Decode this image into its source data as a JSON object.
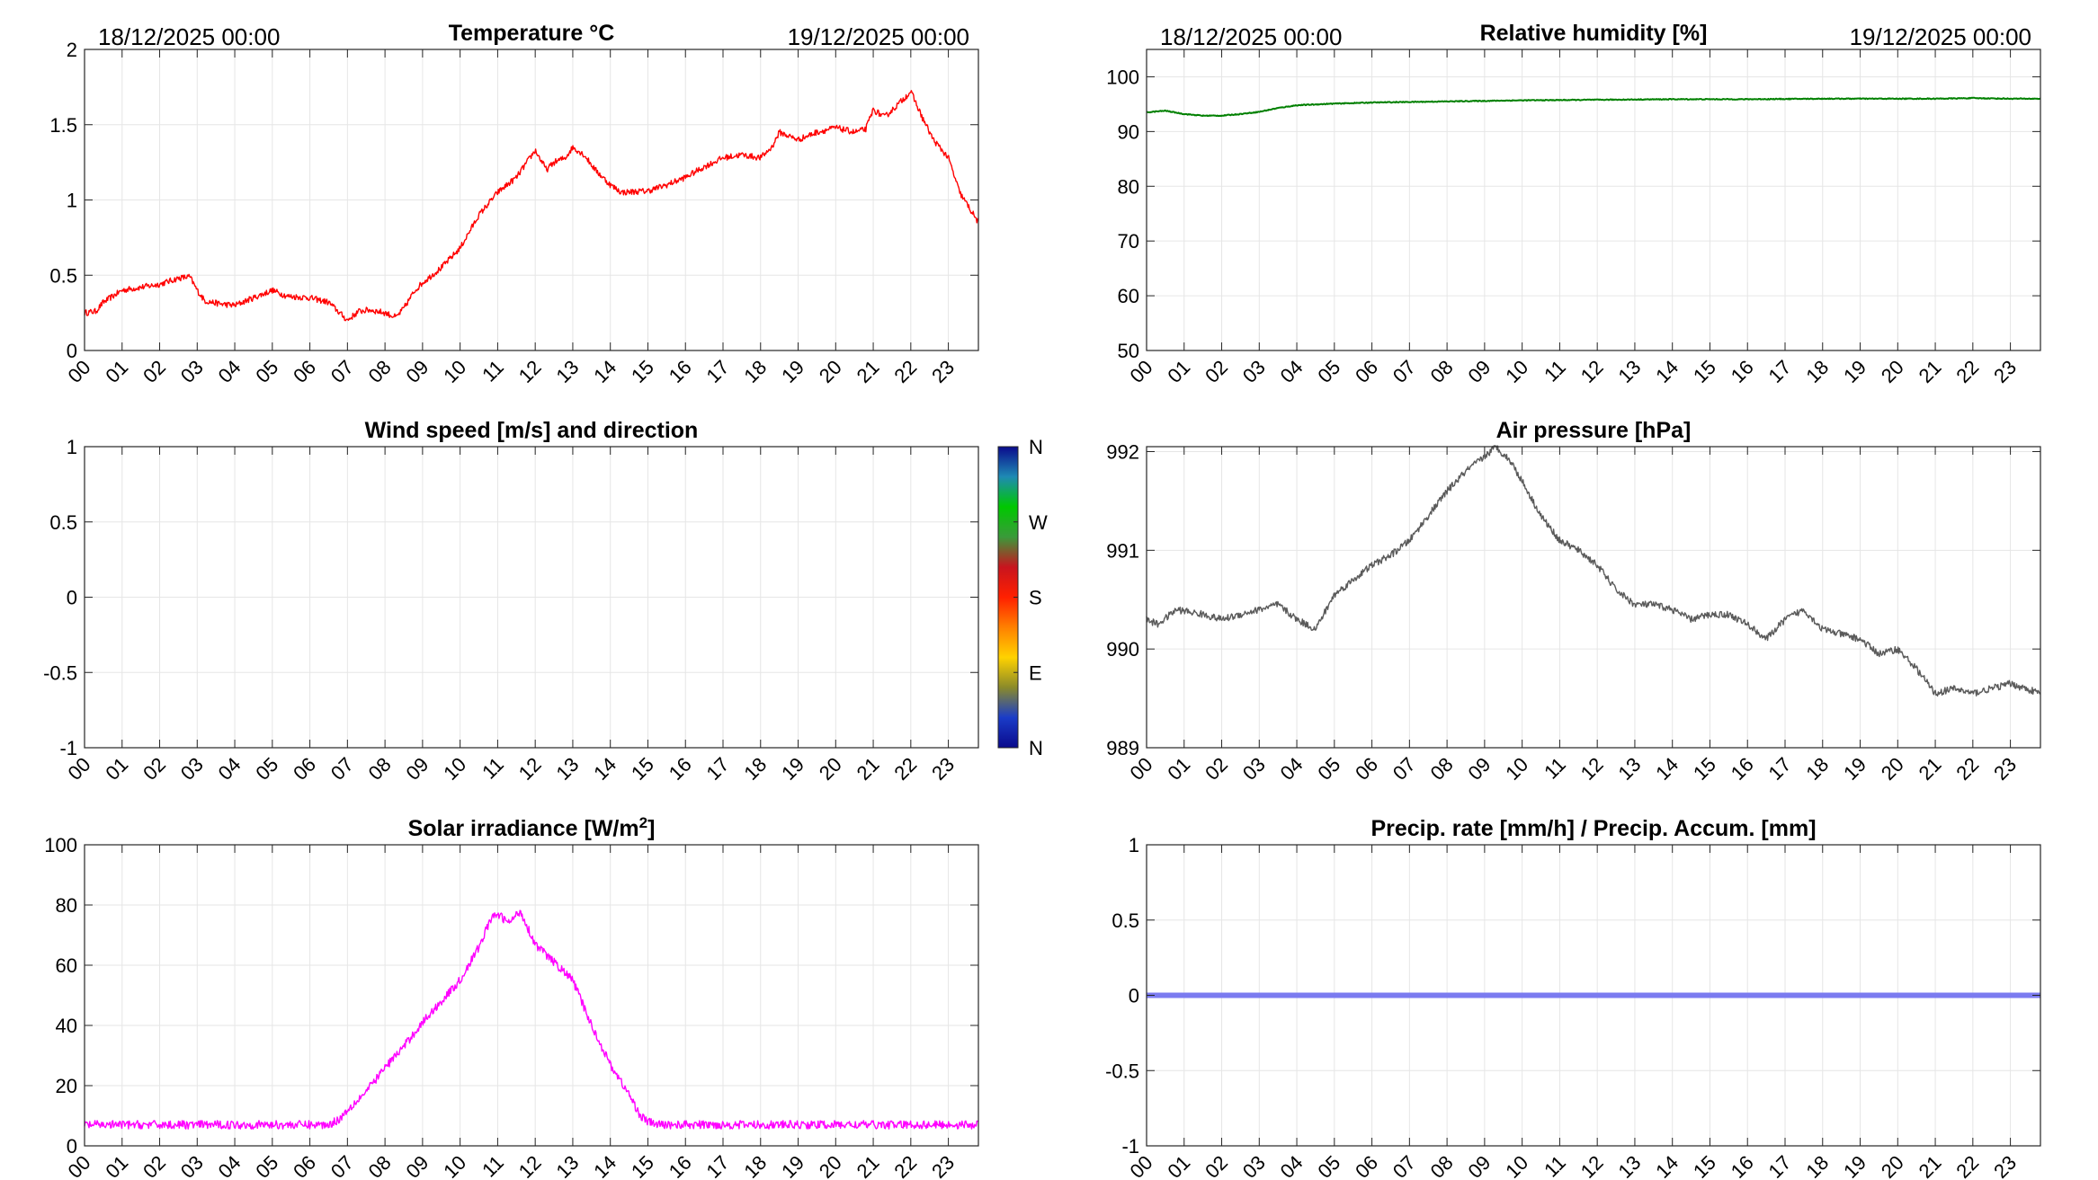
{
  "hour_ticks": [
    "00",
    "01",
    "02",
    "03",
    "04",
    "05",
    "06",
    "07",
    "08",
    "09",
    "10",
    "11",
    "12",
    "13",
    "14",
    "15",
    "16",
    "17",
    "18",
    "19",
    "20",
    "21",
    "22",
    "23"
  ],
  "chart_data": [
    {
      "id": "temperature",
      "type": "line",
      "title": "Temperature °C",
      "date_left": "18/12/2025 00:00",
      "date_right": "19/12/2025 00:00",
      "xlim": [
        0,
        23.8
      ],
      "ylim": [
        0,
        2
      ],
      "yticks": [
        0,
        0.5,
        1,
        1.5,
        2
      ],
      "ytick_labels": [
        "0",
        "0.5",
        "1",
        "1.5",
        "2"
      ],
      "color": "#ff0000",
      "noise": 0.02,
      "x": [
        0,
        0.3,
        0.5,
        1,
        1.5,
        2,
        2.5,
        2.8,
        3,
        3.2,
        3.6,
        4,
        4.5,
        5,
        5.4,
        6,
        6.5,
        7,
        7.3,
        7.6,
        8,
        8.3,
        8.5,
        8.8,
        9,
        9.5,
        10,
        10.5,
        11,
        11.5,
        12,
        12.3,
        12.5,
        12.8,
        13,
        13.3,
        13.6,
        14,
        14.3,
        15,
        15.5,
        16,
        16.5,
        17,
        17.5,
        18,
        18.3,
        18.5,
        18.8,
        19,
        19.5,
        20,
        20.5,
        20.8,
        21,
        21.3,
        21.6,
        22,
        22.3,
        22.6,
        23,
        23.3,
        23.8
      ],
      "y": [
        0.25,
        0.26,
        0.32,
        0.4,
        0.42,
        0.44,
        0.48,
        0.49,
        0.4,
        0.33,
        0.31,
        0.3,
        0.35,
        0.4,
        0.36,
        0.35,
        0.32,
        0.2,
        0.26,
        0.27,
        0.25,
        0.22,
        0.28,
        0.4,
        0.45,
        0.55,
        0.68,
        0.9,
        1.05,
        1.15,
        1.33,
        1.2,
        1.25,
        1.28,
        1.35,
        1.3,
        1.2,
        1.1,
        1.05,
        1.06,
        1.1,
        1.15,
        1.22,
        1.28,
        1.3,
        1.28,
        1.35,
        1.45,
        1.42,
        1.4,
        1.45,
        1.48,
        1.45,
        1.47,
        1.6,
        1.55,
        1.62,
        1.72,
        1.55,
        1.4,
        1.28,
        1.05,
        0.85
      ]
    },
    {
      "id": "humidity",
      "type": "line",
      "title": "Relative humidity [%]",
      "date_left": "18/12/2025 00:00",
      "date_right": "19/12/2025 00:00",
      "xlim": [
        0,
        23.8
      ],
      "ylim": [
        50,
        105
      ],
      "yticks": [
        50,
        60,
        70,
        80,
        90,
        100
      ],
      "ytick_labels": [
        "50",
        "60",
        "70",
        "80",
        "90",
        "100"
      ],
      "color": "#008000",
      "noise": 0.08,
      "x": [
        0,
        0.5,
        1,
        1.5,
        2,
        2.5,
        3,
        3.5,
        4,
        5,
        6,
        7,
        8,
        10,
        12,
        14,
        16,
        18,
        20,
        21,
        22,
        23,
        23.8
      ],
      "y": [
        93.5,
        93.8,
        93.2,
        92.9,
        92.9,
        93.2,
        93.6,
        94.3,
        94.8,
        95.1,
        95.3,
        95.4,
        95.5,
        95.7,
        95.8,
        95.9,
        95.9,
        96.0,
        96.0,
        96.0,
        96.1,
        96.0,
        96.0
      ]
    },
    {
      "id": "wind",
      "type": "scatter",
      "title": "Wind speed [m/s] and direction",
      "xlim": [
        0,
        23.8
      ],
      "ylim": [
        -1,
        1
      ],
      "yticks": [
        -1,
        -0.5,
        0,
        0.5,
        1
      ],
      "ytick_labels": [
        "-1",
        "-0.5",
        "0",
        "0.5",
        "1"
      ],
      "x": [],
      "y": [],
      "colorbar": {
        "labels": [
          "N",
          "E",
          "S",
          "W",
          "N"
        ],
        "colors": [
          "#0a0a8c",
          "#1a3cc8",
          "#8a8a2a",
          "#ffd200",
          "#ff8000",
          "#ff2000",
          "#c8141e",
          "#3a9a3a",
          "#00c800",
          "#1e8ab4",
          "#0a0a8c"
        ]
      }
    },
    {
      "id": "pressure",
      "type": "line",
      "title": "Air pressure [hPa]",
      "xlim": [
        0,
        23.8
      ],
      "ylim": [
        989,
        992.05
      ],
      "yticks": [
        989,
        990,
        991,
        992
      ],
      "ytick_labels": [
        "989",
        "990",
        "991",
        "992"
      ],
      "color": "#5a5a5a",
      "noise": 0.035,
      "x": [
        0,
        0.3,
        0.8,
        1.5,
        2,
        2.5,
        3,
        3.5,
        4,
        4.5,
        5,
        5.5,
        6,
        6.5,
        7,
        7.5,
        8,
        8.5,
        9,
        9.3,
        9.7,
        10,
        10.5,
        11,
        11.5,
        12,
        12.5,
        13,
        13.5,
        14,
        14.5,
        15,
        15.5,
        16,
        16.5,
        17,
        17.5,
        18,
        18.5,
        19,
        19.5,
        20,
        20.5,
        21,
        21.5,
        22,
        22.5,
        23,
        23.8
      ],
      "y": [
        990.3,
        990.25,
        990.4,
        990.35,
        990.3,
        990.35,
        990.4,
        990.45,
        990.3,
        990.2,
        990.55,
        990.7,
        990.85,
        990.95,
        991.1,
        991.35,
        991.6,
        991.8,
        991.95,
        992.05,
        991.9,
        991.7,
        991.35,
        991.1,
        991.0,
        990.85,
        990.6,
        990.45,
        990.45,
        990.4,
        990.3,
        990.35,
        990.35,
        990.25,
        990.1,
        990.3,
        990.4,
        990.2,
        990.15,
        990.1,
        989.95,
        990.0,
        989.8,
        989.55,
        989.6,
        989.55,
        989.6,
        989.65,
        989.55
      ]
    },
    {
      "id": "solar",
      "type": "line",
      "title": "Solar irradiance [W/m",
      "title_sup": "2",
      "title_end": "]",
      "xlim": [
        0,
        23.8
      ],
      "ylim": [
        0,
        100
      ],
      "yticks": [
        0,
        20,
        40,
        60,
        80,
        100
      ],
      "ytick_labels": [
        "0",
        "20",
        "40",
        "60",
        "80",
        "100"
      ],
      "color": "#ff00ff",
      "noise": 1.4,
      "x": [
        0,
        1,
        2,
        3,
        4,
        5,
        6,
        6.5,
        6.8,
        7,
        7.5,
        8,
        8.5,
        9,
        9.5,
        10,
        10.5,
        10.8,
        11,
        11.3,
        11.6,
        12,
        12.5,
        13,
        13.5,
        14,
        14.5,
        14.8,
        15,
        15.3,
        16,
        17,
        18,
        19,
        20,
        21,
        22,
        23,
        23.8
      ],
      "y": [
        7,
        7,
        7,
        7,
        7,
        7,
        7,
        7,
        9,
        12,
        18,
        26,
        33,
        41,
        48,
        55,
        66,
        75,
        77,
        74,
        78,
        67,
        61,
        55,
        40,
        27,
        17,
        10,
        8,
        7,
        7,
        7,
        7,
        7,
        7,
        7,
        7,
        7,
        7
      ]
    },
    {
      "id": "precip",
      "type": "line",
      "title": "Precip. rate [mm/h] / Precip. Accum. [mm]",
      "xlim": [
        0,
        23.8
      ],
      "ylim": [
        -1,
        1
      ],
      "yticks": [
        -1,
        -0.5,
        0,
        0.5,
        1
      ],
      "ytick_labels": [
        "-1",
        "-0.5",
        "0",
        "0.5",
        "1"
      ],
      "color": "#7b7bf0",
      "noise": 0,
      "x": [
        0,
        23.8
      ],
      "y": [
        0,
        0
      ]
    }
  ]
}
